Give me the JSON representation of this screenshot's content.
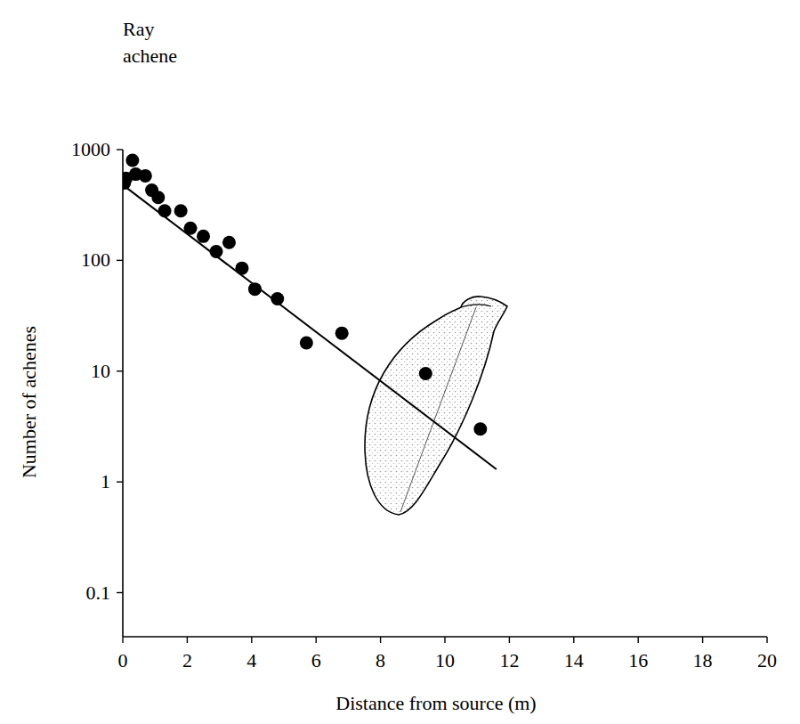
{
  "chart_data": {
    "type": "scatter",
    "title": "Ray achene",
    "x_label": "Distance from source (m)",
    "y_label": "Number of achenes",
    "log": "y",
    "grid": false,
    "xlim": [
      0,
      20
    ],
    "ylim": [
      0.04,
      1000
    ],
    "xticks": [
      0,
      2,
      4,
      6,
      8,
      10,
      12,
      14,
      16,
      18,
      20
    ],
    "yticks": [
      0.1,
      1,
      10,
      100,
      1000
    ],
    "series": [
      {
        "type": "scatter",
        "marker": "circle",
        "color": "#000000",
        "x": [
          0.05,
          0.1,
          0.3,
          0.4,
          0.7,
          0.9,
          1.1,
          1.3,
          1.8,
          2.1,
          2.5,
          2.9,
          3.3,
          3.7,
          4.1,
          4.8,
          5.7,
          6.8,
          9.4,
          11.1
        ],
        "values": [
          500,
          550,
          800,
          600,
          580,
          430,
          370,
          280,
          280,
          195,
          165,
          120,
          145,
          85,
          55,
          45,
          18,
          22,
          9.5,
          3
        ]
      },
      {
        "type": "line",
        "line_style": "solid",
        "color": "#000000",
        "x": [
          0,
          11.6
        ],
        "values": [
          480,
          1.3
        ]
      }
    ]
  }
}
